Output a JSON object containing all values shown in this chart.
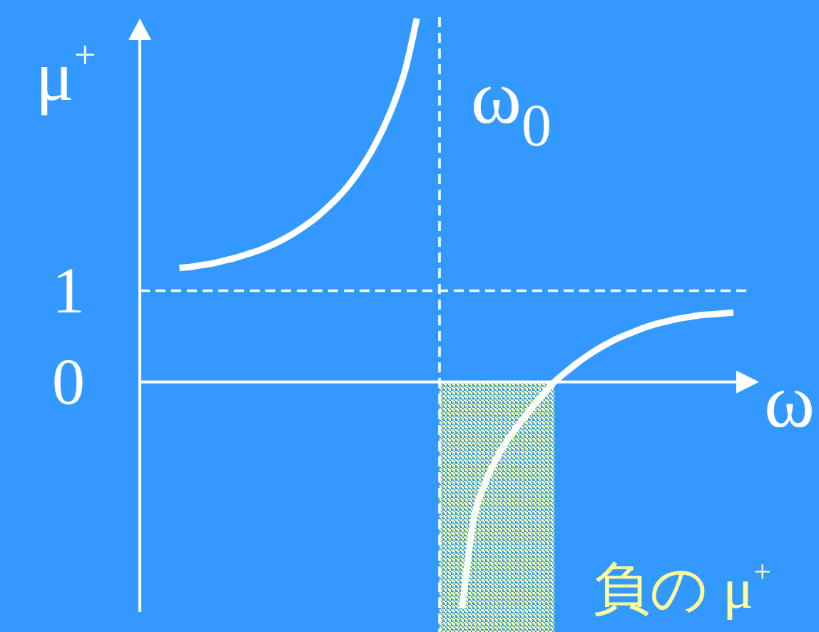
{
  "chart_data": {
    "type": "line",
    "xlabel": "ω",
    "ylabel": "μ$^{+}$",
    "categories": [
      null,
      null,
      null,
      null,
      null,
      null,
      null,
      null,
      null,
      null,
      null,
      null,
      null,
      null,
      null,
      null,
      null,
      null,
      null,
      null,
      null,
      null,
      null,
      null,
      null,
      null,
      null,
      null,
      null,
      null,
      null,
      null,
      null,
      null,
      null,
      null,
      null,
      null,
      null,
      null,
      null,
      null,
      null,
      null,
      null,
      null,
      null,
      null,
      null,
      null,
      null,
      null,
      null
    ],
    "series": [
      {
        "color": "#ffffff",
        "values": [
          null,
          null,
          null,
          1.25,
          1.26,
          1.28,
          1.3,
          1.33,
          1.36,
          1.4,
          1.44,
          1.49,
          1.55,
          1.62,
          1.7,
          1.79,
          1.9,
          2.02,
          2.16,
          2.33,
          2.53,
          2.77,
          3.06,
          3.43,
          3.98,
          null,
          null,
          null,
          null,
          null,
          null,
          null,
          null,
          null,
          null,
          null,
          null,
          null,
          null,
          null,
          null,
          null,
          null,
          null,
          null,
          null,
          null,
          null,
          null,
          null,
          null,
          null,
          null
        ]
      },
      {
        "color": "#ffffff",
        "values": [
          null,
          null,
          null,
          null,
          null,
          null,
          null,
          null,
          null,
          null,
          null,
          null,
          null,
          null,
          null,
          null,
          null,
          null,
          null,
          null,
          null,
          null,
          null,
          null,
          null,
          null,
          null,
          null,
          -2.48,
          -1.52,
          -1.12,
          -0.85,
          -0.64,
          -0.47,
          -0.31,
          -0.16,
          -0.02,
          0.09,
          0.19,
          0.28,
          0.36,
          0.43,
          0.49,
          0.54,
          0.59,
          0.63,
          0.66,
          0.69,
          0.71,
          0.73,
          0.74,
          0.75,
          0.76
        ]
      }
    ],
    "ylim": [
      -2.52,
      3.98
    ],
    "yticks": [
      0,
      1
    ],
    "tick_labels": "y",
    "line_style": "solid",
    "ref_lines": [
      {
        "axis": "y",
        "value": 1,
        "color": "#ffffff",
        "line_style": "dashed"
      }
    ],
    "annotations": [
      "ω$_{0}$",
      "負の μ$^{+}$"
    ]
  }
}
